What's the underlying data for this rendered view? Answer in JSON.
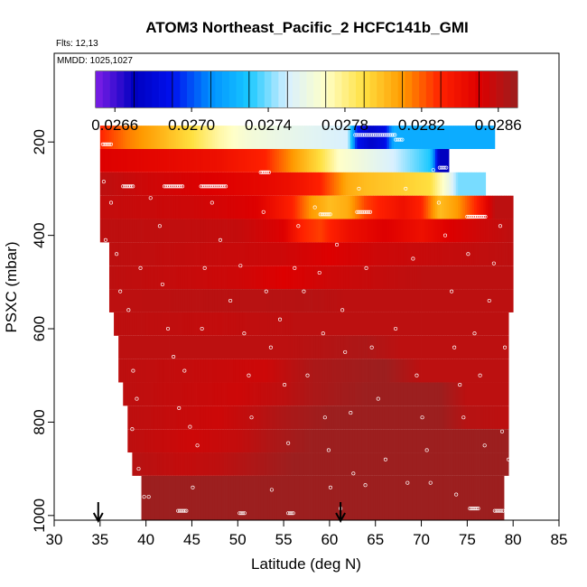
{
  "chart_data": {
    "type": "heatmap",
    "title": "ATOM3 Northeast_Pacific_2 HCFC141b_GMI",
    "subtitles": [
      "Flts: 12,13",
      "MMDD: 1025,1027"
    ],
    "xlabel": "Latitude (deg N)",
    "ylabel": "PSXC (mbar)",
    "xlim": [
      30,
      85
    ],
    "ylim": [
      1010,
      10
    ],
    "x_ticks": [
      30,
      35,
      40,
      45,
      50,
      55,
      60,
      65,
      70,
      75,
      80,
      85
    ],
    "y_ticks": [
      200,
      400,
      600,
      800,
      1000
    ],
    "colorbar": {
      "min": 0.0265,
      "max": 0.0287,
      "tick_values": [
        0.0266,
        0.027,
        0.0274,
        0.0278,
        0.0282,
        0.0286
      ],
      "tick_labels": [
        "0.0266",
        "0.0270",
        "0.0274",
        "0.0278",
        "0.0282",
        "0.0286"
      ],
      "colors": [
        "#7f1fe6",
        "#0000c0",
        "#0010ee",
        "#0090ff",
        "#18c8ff",
        "#d8f0ff",
        "#ffffc8",
        "#ffe040",
        "#ff9a00",
        "#ff2000",
        "#dd0000",
        "#9c1f1f"
      ]
    },
    "arrows_at_lat": [
      34.8,
      61.2
    ],
    "bands": [
      {
        "p_top": 165,
        "p_bot": 215,
        "lat_start": 35,
        "lat_end": 78,
        "segments": [
          [
            35,
            0.0283
          ],
          [
            38,
            0.02815
          ],
          [
            41,
            0.02805
          ],
          [
            45,
            0.0279
          ],
          [
            48,
            0.02775
          ],
          [
            51,
            0.02765
          ],
          [
            54,
            0.0276
          ],
          [
            58,
            0.02755
          ],
          [
            62,
            0.0275
          ],
          [
            63,
            0.0269
          ],
          [
            64.5,
            0.02675
          ],
          [
            66,
            0.02685
          ],
          [
            67,
            0.0272
          ],
          [
            68,
            0.0272
          ]
        ]
      },
      {
        "p_top": 215,
        "p_bot": 265,
        "lat_start": 35,
        "lat_end": 73,
        "segments": [
          [
            35,
            0.0285
          ],
          [
            42,
            0.02845
          ],
          [
            48,
            0.0284
          ],
          [
            53,
            0.0283
          ],
          [
            56,
            0.0281
          ],
          [
            59,
            0.0279
          ],
          [
            61,
            0.0277
          ],
          [
            64,
            0.0276
          ],
          [
            67,
            0.0275
          ],
          [
            69,
            0.0274
          ],
          [
            71,
            0.0273
          ],
          [
            72,
            0.0267
          ],
          [
            73,
            0.0267
          ]
        ]
      },
      {
        "p_top": 265,
        "p_bot": 315,
        "lat_start": 35,
        "lat_end": 77,
        "segments": [
          [
            35,
            0.0286
          ],
          [
            40,
            0.02855
          ],
          [
            47,
            0.0285
          ],
          [
            53,
            0.02845
          ],
          [
            56,
            0.0284
          ],
          [
            59,
            0.0283
          ],
          [
            62,
            0.02805
          ],
          [
            64,
            0.028
          ],
          [
            68,
            0.02795
          ],
          [
            71,
            0.0279
          ],
          [
            73,
            0.0276
          ],
          [
            74,
            0.0274
          ],
          [
            77,
            0.0274
          ]
        ]
      },
      {
        "p_top": 315,
        "p_bot": 365,
        "lat_start": 35,
        "lat_end": 80,
        "segments": [
          [
            35,
            0.02858
          ],
          [
            45,
            0.02855
          ],
          [
            52,
            0.0285
          ],
          [
            56,
            0.0283
          ],
          [
            58,
            0.0281
          ],
          [
            60,
            0.028
          ],
          [
            62,
            0.02805
          ],
          [
            64,
            0.02825
          ],
          [
            68,
            0.0284
          ],
          [
            70,
            0.0283
          ],
          [
            72,
            0.028
          ],
          [
            74,
            0.0281
          ],
          [
            76,
            0.0283
          ],
          [
            78,
            0.0286
          ],
          [
            80,
            0.0286
          ]
        ]
      },
      {
        "p_top": 365,
        "p_bot": 415,
        "lat_start": 35,
        "lat_end": 80,
        "segments": [
          [
            35,
            0.0286
          ],
          [
            50,
            0.02858
          ],
          [
            55,
            0.0285
          ],
          [
            57,
            0.0283
          ],
          [
            59,
            0.02825
          ],
          [
            62,
            0.0284
          ],
          [
            66,
            0.0285
          ],
          [
            70,
            0.0284
          ],
          [
            73,
            0.0285
          ],
          [
            80,
            0.0286
          ]
        ]
      },
      {
        "p_top": 415,
        "p_bot": 465,
        "lat_start": 36,
        "lat_end": 80,
        "segments": [
          [
            36,
            0.0286
          ],
          [
            55,
            0.02855
          ],
          [
            60,
            0.0285
          ],
          [
            65,
            0.02855
          ],
          [
            80,
            0.0286
          ]
        ]
      },
      {
        "p_top": 465,
        "p_bot": 515,
        "lat_start": 36,
        "lat_end": 80,
        "segments": [
          [
            36,
            0.0286
          ],
          [
            50,
            0.02855
          ],
          [
            55,
            0.0285
          ],
          [
            60,
            0.02855
          ],
          [
            70,
            0.0286
          ],
          [
            80,
            0.0286
          ]
        ]
      },
      {
        "p_top": 515,
        "p_bot": 565,
        "lat_start": 36,
        "lat_end": 80,
        "segments": [
          [
            36,
            0.0286
          ],
          [
            58,
            0.02862
          ],
          [
            62,
            0.0286
          ],
          [
            80,
            0.0286
          ]
        ]
      },
      {
        "p_top": 565,
        "p_bot": 615,
        "lat_start": 36.5,
        "lat_end": 79.5,
        "segments": [
          [
            36.5,
            0.0286
          ],
          [
            48,
            0.02858
          ],
          [
            56,
            0.0286
          ],
          [
            62,
            0.0286
          ],
          [
            79.5,
            0.0286
          ]
        ]
      },
      {
        "p_top": 615,
        "p_bot": 665,
        "lat_start": 37,
        "lat_end": 79.5,
        "segments": [
          [
            37,
            0.0286
          ],
          [
            55,
            0.0286
          ],
          [
            58,
            0.02862
          ],
          [
            64,
            0.02865
          ],
          [
            68,
            0.0286
          ],
          [
            79.5,
            0.0286
          ]
        ]
      },
      {
        "p_top": 665,
        "p_bot": 715,
        "lat_start": 37,
        "lat_end": 79.5,
        "segments": [
          [
            37,
            0.0286
          ],
          [
            53,
            0.02855
          ],
          [
            58,
            0.02865
          ],
          [
            66,
            0.0287
          ],
          [
            70,
            0.0286
          ],
          [
            79.5,
            0.0286
          ]
        ]
      },
      {
        "p_top": 715,
        "p_bot": 765,
        "lat_start": 37.5,
        "lat_end": 79.5,
        "segments": [
          [
            37.5,
            0.0286
          ],
          [
            50,
            0.02855
          ],
          [
            55,
            0.0286
          ],
          [
            58,
            0.02865
          ],
          [
            64,
            0.0287
          ],
          [
            72,
            0.0287
          ],
          [
            75,
            0.0286
          ],
          [
            79.5,
            0.0286
          ]
        ]
      },
      {
        "p_top": 765,
        "p_bot": 815,
        "lat_start": 38,
        "lat_end": 79.5,
        "segments": [
          [
            38,
            0.0286
          ],
          [
            48,
            0.02855
          ],
          [
            52,
            0.0286
          ],
          [
            55,
            0.02865
          ],
          [
            60,
            0.0287
          ],
          [
            72,
            0.0287
          ],
          [
            75,
            0.02862
          ],
          [
            79.5,
            0.0286
          ]
        ]
      },
      {
        "p_top": 815,
        "p_bot": 865,
        "lat_start": 38,
        "lat_end": 79.5,
        "segments": [
          [
            38,
            0.0286
          ],
          [
            45,
            0.02855
          ],
          [
            50,
            0.02858
          ],
          [
            54,
            0.02865
          ],
          [
            58,
            0.0287
          ],
          [
            79.5,
            0.0287
          ]
        ]
      },
      {
        "p_top": 865,
        "p_bot": 915,
        "lat_start": 38.5,
        "lat_end": 79.5,
        "segments": [
          [
            38.5,
            0.02862
          ],
          [
            44,
            0.02858
          ],
          [
            48,
            0.0286
          ],
          [
            52,
            0.02865
          ],
          [
            56,
            0.0287
          ],
          [
            79.5,
            0.0287
          ]
        ]
      },
      {
        "p_top": 915,
        "p_bot": 1010,
        "lat_start": 39.5,
        "lat_end": 79,
        "segments": [
          [
            39.5,
            0.0287
          ],
          [
            79,
            0.0287
          ]
        ]
      }
    ],
    "sample_tracks": [
      {
        "p": 205,
        "lat_start": 35.3,
        "lat_end": 36.3
      },
      {
        "p": 185,
        "lat_start": 62.8,
        "lat_end": 67.2
      },
      {
        "p": 195,
        "lat_start": 67.2,
        "lat_end": 68.0
      },
      {
        "p": 255,
        "lat_start": 72.0,
        "lat_end": 72.8
      },
      {
        "p": 295,
        "lat_start": 37.5,
        "lat_end": 38.7
      },
      {
        "p": 295,
        "lat_start": 42.0,
        "lat_end": 44.0
      },
      {
        "p": 295,
        "lat_start": 46.0,
        "lat_end": 48.8
      },
      {
        "p": 265,
        "lat_start": 52.5,
        "lat_end": 53.5
      },
      {
        "p": 355,
        "lat_start": 59.0,
        "lat_end": 60.2
      },
      {
        "p": 350,
        "lat_start": 63.0,
        "lat_end": 64.5
      },
      {
        "p": 360,
        "lat_start": 75.0,
        "lat_end": 77.0
      },
      {
        "p": 990,
        "lat_start": 43.5,
        "lat_end": 44.5
      },
      {
        "p": 995,
        "lat_start": 50.2,
        "lat_end": 50.8
      },
      {
        "p": 995,
        "lat_start": 55.5,
        "lat_end": 56.2
      },
      {
        "p": 985,
        "lat_start": 75.3,
        "lat_end": 76.2
      },
      {
        "p": 990,
        "lat_start": 78.0,
        "lat_end": 79.0
      }
    ],
    "samples": [
      [
        35.4,
        285
      ],
      [
        36.2,
        330
      ],
      [
        35.6,
        410
      ],
      [
        36.8,
        440
      ],
      [
        37.2,
        520
      ],
      [
        38.1,
        560
      ],
      [
        39.4,
        470
      ],
      [
        38.6,
        690
      ],
      [
        39.0,
        750
      ],
      [
        38.5,
        815
      ],
      [
        39.2,
        900
      ],
      [
        39.8,
        960
      ],
      [
        40.5,
        320
      ],
      [
        41.5,
        380
      ],
      [
        41.8,
        505
      ],
      [
        42.4,
        600
      ],
      [
        43.0,
        660
      ],
      [
        44.2,
        690
      ],
      [
        43.6,
        770
      ],
      [
        44.8,
        810
      ],
      [
        45.6,
        850
      ],
      [
        46.4,
        470
      ],
      [
        46.1,
        600
      ],
      [
        47.2,
        330
      ],
      [
        48.1,
        410
      ],
      [
        49.2,
        540
      ],
      [
        50.3,
        465
      ],
      [
        50.7,
        610
      ],
      [
        51.2,
        700
      ],
      [
        51.5,
        790
      ],
      [
        52.8,
        350
      ],
      [
        53.1,
        520
      ],
      [
        53.6,
        640
      ],
      [
        54.6,
        580
      ],
      [
        55.1,
        720
      ],
      [
        55.5,
        845
      ],
      [
        56.6,
        380
      ],
      [
        56.2,
        470
      ],
      [
        57.2,
        520
      ],
      [
        57.6,
        700
      ],
      [
        58.4,
        340
      ],
      [
        58.9,
        480
      ],
      [
        59.3,
        610
      ],
      [
        59.5,
        790
      ],
      [
        59.9,
        860
      ],
      [
        60.1,
        940
      ],
      [
        60.8,
        420
      ],
      [
        61.4,
        560
      ],
      [
        61.7,
        650
      ],
      [
        62.3,
        780
      ],
      [
        62.6,
        910
      ],
      [
        63.2,
        300
      ],
      [
        64.0,
        470
      ],
      [
        64.6,
        640
      ],
      [
        65.3,
        750
      ],
      [
        66.1,
        880
      ],
      [
        67.2,
        600
      ],
      [
        68.3,
        300
      ],
      [
        69.1,
        450
      ],
      [
        69.5,
        700
      ],
      [
        70.1,
        790
      ],
      [
        70.6,
        860
      ],
      [
        71.0,
        930
      ],
      [
        71.3,
        260
      ],
      [
        71.9,
        330
      ],
      [
        72.6,
        400
      ],
      [
        73.3,
        520
      ],
      [
        73.6,
        640
      ],
      [
        74.2,
        720
      ],
      [
        74.6,
        790
      ],
      [
        75.1,
        440
      ],
      [
        75.8,
        610
      ],
      [
        76.4,
        700
      ],
      [
        76.9,
        850
      ],
      [
        77.4,
        540
      ],
      [
        77.9,
        460
      ],
      [
        78.6,
        380
      ],
      [
        79.1,
        640
      ],
      [
        78.8,
        820
      ],
      [
        79.5,
        880
      ],
      [
        40.3,
        960
      ],
      [
        45.1,
        940
      ],
      [
        53.7,
        945
      ],
      [
        63.9,
        935
      ],
      [
        68.5,
        930
      ],
      [
        73.8,
        955
      ],
      [
        61.2,
        985
      ]
    ]
  }
}
